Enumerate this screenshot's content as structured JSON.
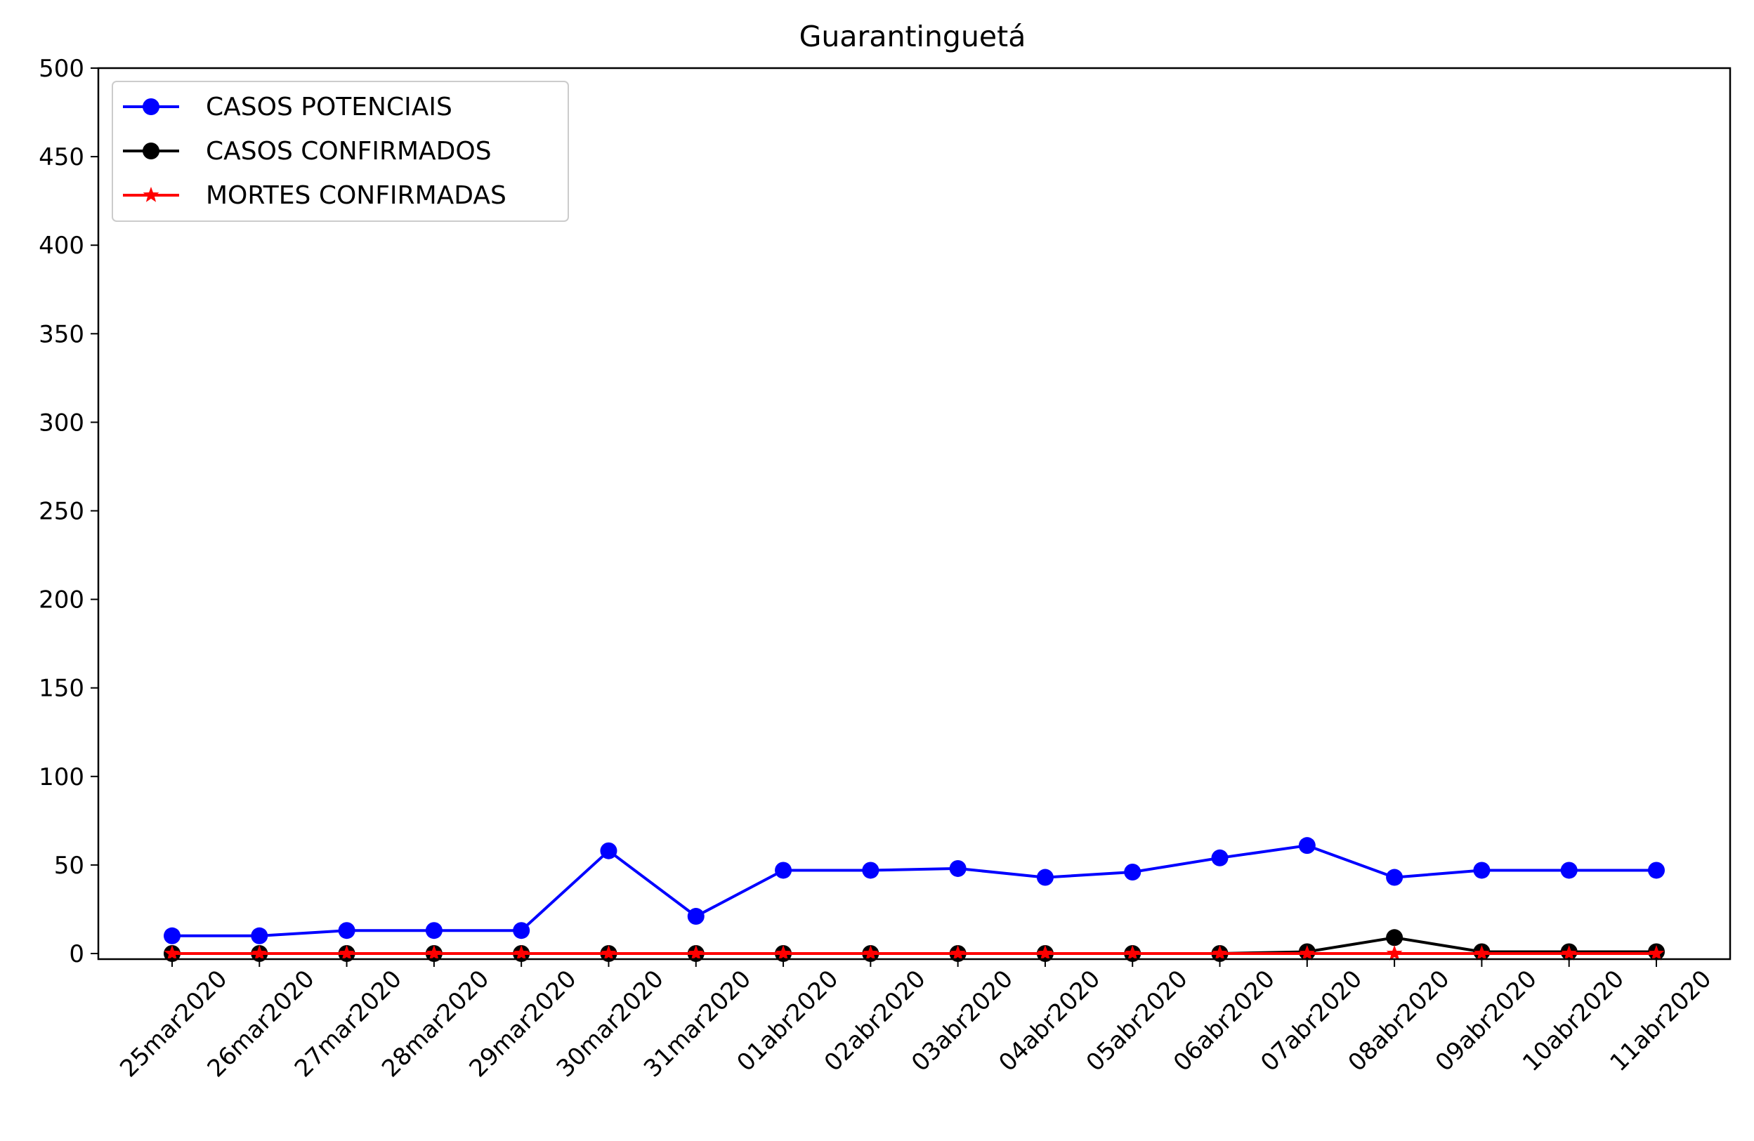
{
  "chart_data": {
    "type": "line",
    "title": "Guarantinguetá",
    "xlabel": "",
    "ylabel": "",
    "ylim": [
      0,
      500
    ],
    "yticks": [
      0,
      50,
      100,
      150,
      200,
      250,
      300,
      350,
      400,
      450,
      500
    ],
    "categories": [
      "25mar2020",
      "26mar2020",
      "27mar2020",
      "28mar2020",
      "29mar2020",
      "30mar2020",
      "31mar2020",
      "01abr2020",
      "02abr2020",
      "03abr2020",
      "04abr2020",
      "05abr2020",
      "06abr2020",
      "07abr2020",
      "08abr2020",
      "09abr2020",
      "10abr2020",
      "11abr2020"
    ],
    "grid": false,
    "legend_position": "top-left",
    "series": [
      {
        "name": "CASOS POTENCIAIS",
        "color": "#0000ff",
        "marker": "circle",
        "values": [
          10,
          10,
          13,
          13,
          13,
          58,
          21,
          47,
          47,
          48,
          43,
          46,
          54,
          61,
          43,
          47,
          47,
          47
        ]
      },
      {
        "name": "CASOS CONFIRMADOS",
        "color": "#000000",
        "marker": "circle",
        "values": [
          0,
          0,
          0,
          0,
          0,
          0,
          0,
          0,
          0,
          0,
          0,
          0,
          0,
          1,
          9,
          1,
          1,
          1
        ]
      },
      {
        "name": "MORTES CONFIRMADAS",
        "color": "#ff0000",
        "marker": "star",
        "values": [
          0,
          0,
          0,
          0,
          0,
          0,
          0,
          0,
          0,
          0,
          0,
          0,
          0,
          0,
          0,
          0,
          0,
          0
        ]
      }
    ]
  }
}
